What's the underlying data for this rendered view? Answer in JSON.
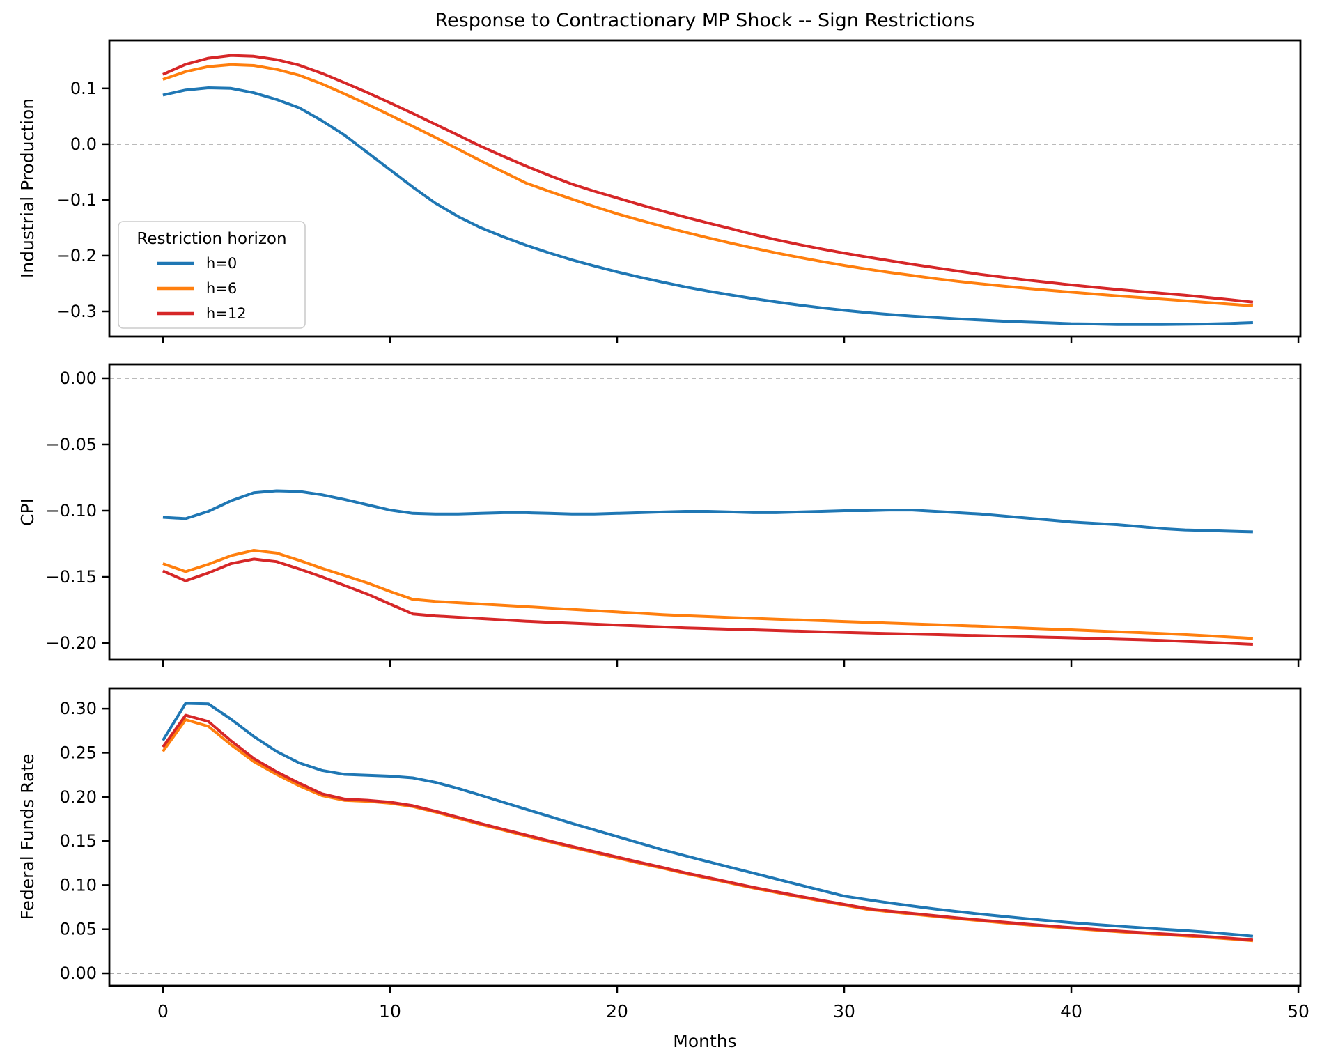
{
  "title": "Response to Contractionary MP Shock -- Sign Restrictions",
  "xlabel": "Months",
  "legend": {
    "title": "Restriction horizon",
    "entries": [
      {
        "label": "h=0",
        "color": "#1f77b4"
      },
      {
        "label": "h=6",
        "color": "#ff7f0e"
      },
      {
        "label": "h=12",
        "color": "#d62728"
      }
    ]
  },
  "chart_data": {
    "type": "line",
    "title": "Response to Contractionary MP Shock -- Sign Restrictions",
    "xlabel": "Months",
    "grid": false,
    "legend_position": "upper left of first panel",
    "zero_reference_line": {
      "color": "#909090",
      "style": "dashed"
    },
    "x": [
      0,
      1,
      2,
      3,
      4,
      5,
      6,
      7,
      8,
      9,
      10,
      11,
      12,
      13,
      14,
      15,
      16,
      17,
      18,
      19,
      20,
      21,
      22,
      23,
      24,
      25,
      26,
      27,
      28,
      29,
      30,
      31,
      32,
      33,
      34,
      35,
      36,
      37,
      38,
      39,
      40,
      41,
      42,
      43,
      44,
      45,
      46,
      47,
      48
    ],
    "xlim": [
      -2.36,
      50.09
    ],
    "x_ticks": [
      0,
      10,
      20,
      30,
      40,
      50
    ],
    "x_tick_labels": [
      "0",
      "10",
      "20",
      "30",
      "40",
      "50"
    ],
    "panels": [
      {
        "ylabel": "Industrial Production",
        "ylim": [
          -0.345,
          0.186
        ],
        "y_ticks": [
          0.1,
          0.0,
          -0.1,
          -0.2,
          -0.3
        ],
        "y_tick_labels": [
          "0.1",
          "0.0",
          "−0.1",
          "−0.2",
          "−0.3"
        ],
        "zero_line": true,
        "series": [
          {
            "name": "h=0",
            "color": "#1f77b4",
            "values": [
              0.088,
              0.097,
              0.101,
              0.1,
              0.092,
              0.08,
              0.065,
              0.042,
              0.016,
              -0.015,
              -0.046,
              -0.077,
              -0.106,
              -0.13,
              -0.15,
              -0.1665,
              -0.1815,
              -0.195,
              -0.2075,
              -0.2185,
              -0.229,
              -0.2385,
              -0.2475,
              -0.256,
              -0.2635,
              -0.2705,
              -0.277,
              -0.283,
              -0.2885,
              -0.2935,
              -0.298,
              -0.302,
              -0.3055,
              -0.3085,
              -0.311,
              -0.3135,
              -0.3155,
              -0.3175,
              -0.319,
              -0.3205,
              -0.322,
              -0.3225,
              -0.3235,
              -0.3235,
              -0.3235,
              -0.323,
              -0.3225,
              -0.3215,
              -0.32
            ]
          },
          {
            "name": "h=6",
            "color": "#ff7f0e",
            "values": [
              0.116,
              0.13,
              0.139,
              0.1425,
              0.141,
              0.134,
              0.1235,
              0.108,
              0.09,
              0.0715,
              0.052,
              0.032,
              0.012,
              -0.009,
              -0.03,
              -0.05,
              -0.07,
              -0.0845,
              -0.0985,
              -0.112,
              -0.125,
              -0.1365,
              -0.1475,
              -0.158,
              -0.168,
              -0.1775,
              -0.1865,
              -0.195,
              -0.203,
              -0.2105,
              -0.2175,
              -0.224,
              -0.23,
              -0.2355,
              -0.241,
              -0.246,
              -0.2505,
              -0.2545,
              -0.2585,
              -0.262,
              -0.2655,
              -0.2688,
              -0.272,
              -0.275,
              -0.278,
              -0.281,
              -0.284,
              -0.287,
              -0.29
            ]
          },
          {
            "name": "h=12",
            "color": "#d62728",
            "values": [
              0.125,
              0.143,
              0.154,
              0.159,
              0.1575,
              0.1515,
              0.1415,
              0.127,
              0.11,
              0.0925,
              0.074,
              0.055,
              0.0355,
              0.016,
              -0.004,
              -0.022,
              -0.0395,
              -0.056,
              -0.0715,
              -0.0845,
              -0.0965,
              -0.1085,
              -0.12,
              -0.131,
              -0.1415,
              -0.1515,
              -0.162,
              -0.1715,
              -0.18,
              -0.188,
              -0.1955,
              -0.2025,
              -0.209,
              -0.2155,
              -0.2215,
              -0.2275,
              -0.2335,
              -0.2385,
              -0.2435,
              -0.248,
              -0.2525,
              -0.2565,
              -0.2605,
              -0.264,
              -0.2675,
              -0.271,
              -0.275,
              -0.279,
              -0.2835
            ]
          }
        ]
      },
      {
        "ylabel": "CPI",
        "ylim": [
          -0.2126,
          0.0105
        ],
        "y_ticks": [
          0.0,
          -0.05,
          -0.1,
          -0.15,
          -0.2
        ],
        "y_tick_labels": [
          "0.00",
          "−0.05",
          "−0.10",
          "−0.15",
          "−0.20"
        ],
        "zero_line": true,
        "series": [
          {
            "name": "h=0",
            "color": "#1f77b4",
            "values": [
              -0.105,
              -0.106,
              -0.1005,
              -0.0925,
              -0.0865,
              -0.085,
              -0.0855,
              -0.088,
              -0.0915,
              -0.0955,
              -0.0995,
              -0.102,
              -0.1025,
              -0.1025,
              -0.102,
              -0.1015,
              -0.1015,
              -0.102,
              -0.1025,
              -0.1025,
              -0.102,
              -0.1015,
              -0.101,
              -0.1005,
              -0.1005,
              -0.101,
              -0.1015,
              -0.1015,
              -0.101,
              -0.1005,
              -0.1,
              -0.1,
              -0.0995,
              -0.0995,
              -0.1005,
              -0.1015,
              -0.1025,
              -0.104,
              -0.1055,
              -0.107,
              -0.1085,
              -0.1095,
              -0.1105,
              -0.112,
              -0.1135,
              -0.1145,
              -0.115,
              -0.1155,
              -0.116
            ]
          },
          {
            "name": "h=6",
            "color": "#ff7f0e",
            "values": [
              -0.14,
              -0.146,
              -0.1405,
              -0.134,
              -0.13,
              -0.132,
              -0.1375,
              -0.1435,
              -0.149,
              -0.1545,
              -0.161,
              -0.167,
              -0.1685,
              -0.1695,
              -0.1705,
              -0.1715,
              -0.1725,
              -0.1735,
              -0.1745,
              -0.1755,
              -0.1765,
              -0.1775,
              -0.1785,
              -0.1793,
              -0.18,
              -0.1807,
              -0.1813,
              -0.1819,
              -0.1825,
              -0.1831,
              -0.1837,
              -0.1843,
              -0.1849,
              -0.1855,
              -0.1861,
              -0.1867,
              -0.1873,
              -0.188,
              -0.1887,
              -0.1894,
              -0.19,
              -0.1907,
              -0.1914,
              -0.1921,
              -0.1928,
              -0.1936,
              -0.1945,
              -0.1955,
              -0.1965
            ]
          },
          {
            "name": "h=12",
            "color": "#d62728",
            "values": [
              -0.1455,
              -0.153,
              -0.147,
              -0.14,
              -0.1365,
              -0.1385,
              -0.144,
              -0.15,
              -0.1565,
              -0.163,
              -0.1705,
              -0.178,
              -0.1795,
              -0.1805,
              -0.1815,
              -0.1825,
              -0.1835,
              -0.1843,
              -0.185,
              -0.1857,
              -0.1864,
              -0.1871,
              -0.1878,
              -0.1885,
              -0.189,
              -0.1895,
              -0.19,
              -0.1905,
              -0.191,
              -0.1915,
              -0.192,
              -0.1924,
              -0.1928,
              -0.1932,
              -0.1936,
              -0.194,
              -0.1944,
              -0.1948,
              -0.1952,
              -0.1956,
              -0.196,
              -0.1965,
              -0.197,
              -0.1975,
              -0.198,
              -0.1987,
              -0.1994,
              -0.2002,
              -0.201
            ]
          }
        ]
      },
      {
        "ylabel": "Federal Funds Rate",
        "ylim": [
          -0.0142,
          0.323
        ],
        "y_ticks": [
          0.3,
          0.25,
          0.2,
          0.15,
          0.1,
          0.05,
          0.0
        ],
        "y_tick_labels": [
          "0.30",
          "0.25",
          "0.20",
          "0.15",
          "0.10",
          "0.05",
          "0.00"
        ],
        "zero_line": true,
        "series": [
          {
            "name": "h=0",
            "color": "#1f77b4",
            "values": [
              0.264,
              0.306,
              0.3055,
              0.288,
              0.2685,
              0.2515,
              0.2385,
              0.23,
              0.2255,
              0.2245,
              0.2235,
              0.2215,
              0.2165,
              0.2095,
              0.2018,
              0.1938,
              0.1858,
              0.178,
              0.17,
              0.1625,
              0.155,
              0.1475,
              0.14,
              0.1332,
              0.1266,
              0.12,
              0.1136,
              0.107,
              0.1005,
              0.094,
              0.0875,
              0.0836,
              0.0798,
              0.0763,
              0.073,
              0.07,
              0.0671,
              0.0645,
              0.062,
              0.0597,
              0.0575,
              0.0555,
              0.0536,
              0.0518,
              0.0501,
              0.0485,
              0.0466,
              0.0445,
              0.042
            ]
          },
          {
            "name": "h=6",
            "color": "#ff7f0e",
            "values": [
              0.2515,
              0.2875,
              0.28,
              0.259,
              0.24,
              0.2255,
              0.2125,
              0.2015,
              0.196,
              0.195,
              0.1928,
              0.189,
              0.1828,
              0.1758,
              0.1688,
              0.1622,
              0.1557,
              0.1492,
              0.143,
              0.1368,
              0.1308,
              0.1248,
              0.1192,
              0.1132,
              0.1077,
              0.1022,
              0.0967,
              0.0917,
              0.0867,
              0.082,
              0.0774,
              0.0727,
              0.0698,
              0.0671,
              0.0645,
              0.062,
              0.0596,
              0.0573,
              0.0551,
              0.053,
              0.051,
              0.0491,
              0.0473,
              0.0456,
              0.044,
              0.0424,
              0.0408,
              0.039,
              0.037
            ]
          },
          {
            "name": "h=12",
            "color": "#d62728",
            "values": [
              0.2565,
              0.2925,
              0.2855,
              0.2635,
              0.2435,
              0.2285,
              0.2155,
              0.2035,
              0.1975,
              0.1962,
              0.194,
              0.19,
              0.1838,
              0.1768,
              0.1698,
              0.1632,
              0.1567,
              0.1502,
              0.144,
              0.1378,
              0.1318,
              0.1258,
              0.12,
              0.114,
              0.1085,
              0.103,
              0.0975,
              0.0925,
              0.0875,
              0.0828,
              0.0782,
              0.0735,
              0.0706,
              0.0679,
              0.0653,
              0.0628,
              0.0604,
              0.0581,
              0.0559,
              0.0538,
              0.0518,
              0.0499,
              0.0481,
              0.0464,
              0.0448,
              0.0432,
              0.0416,
              0.0398,
              0.0378
            ]
          }
        ]
      }
    ]
  }
}
